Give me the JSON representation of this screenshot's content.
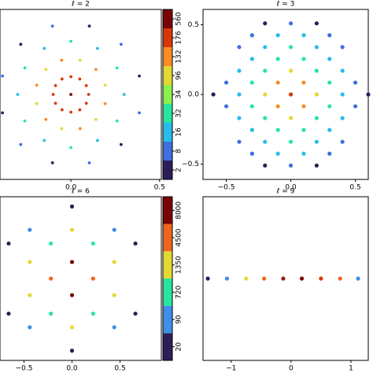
{
  "chart_data": [
    {
      "type": "scatter",
      "title": "ℓ = 2",
      "x": [
        0,
        0.1,
        0.087,
        0.05,
        0,
        -0.05,
        -0.087,
        -0.1,
        -0.087,
        -0.05,
        0,
        0.05,
        0.087,
        0.193,
        0.141,
        0.052,
        -0.052,
        -0.141,
        -0.193,
        -0.193,
        -0.141,
        -0.052,
        0.052,
        0.141,
        0.193,
        0.3,
        0.26,
        0.15,
        0,
        -0.15,
        -0.26,
        -0.3,
        -0.26,
        -0.15,
        0,
        0.15,
        0.26,
        0.386,
        0.283,
        0.104,
        -0.104,
        -0.283,
        -0.386,
        -0.386,
        -0.283,
        -0.104,
        0.104,
        0.283,
        0.386
      ],
      "y": [
        0,
        0,
        0.05,
        0.087,
        0.1,
        0.087,
        0.05,
        0,
        -0.05,
        -0.087,
        -0.1,
        -0.087,
        -0.05,
        0.052,
        0.141,
        0.193,
        0.193,
        0.141,
        0.052,
        -0.052,
        -0.141,
        -0.193,
        -0.193,
        -0.141,
        -0.052,
        0,
        0.15,
        0.26,
        0.3,
        0.26,
        0.15,
        0,
        -0.15,
        -0.26,
        -0.3,
        -0.26,
        -0.15,
        0.104,
        0.283,
        0.386,
        0.386,
        0.283,
        0.104,
        -0.104,
        -0.283,
        -0.386,
        -0.386,
        -0.283,
        -0.104
      ],
      "c": [
        560,
        176,
        176,
        176,
        176,
        176,
        176,
        176,
        176,
        176,
        176,
        176,
        176,
        96,
        132,
        96,
        132,
        96,
        132,
        96,
        132,
        96,
        132,
        96,
        132,
        16,
        32,
        16,
        32,
        16,
        32,
        16,
        32,
        16,
        32,
        16,
        32,
        2,
        8,
        2,
        8,
        2,
        8,
        2,
        8,
        2,
        8,
        2,
        8
      ],
      "xlim": [
        -0.4,
        0.51
      ],
      "ylim": [
        -0.48,
        0.48
      ],
      "xticks": [
        {
          "value": 0,
          "label": "0.0"
        },
        0.5
      ],
      "colorbar": {
        "ticks": [
          2,
          8,
          16,
          32,
          34,
          96,
          132,
          176,
          560
        ],
        "colors": [
          "#2d1e5a",
          "#3e6fe0",
          "#28bceb",
          "#26e6a0",
          "#8cf04c",
          "#e3d936",
          "#fb8b24",
          "#d93807",
          "#7a0403"
        ]
      }
    },
    {
      "type": "scatter",
      "title": "ℓ = 3",
      "x": [
        -0.2,
        0,
        0.2,
        -0.3,
        -0.1,
        0.1,
        0.3,
        -0.4,
        -0.2,
        0,
        0.2,
        0.4,
        -0.3,
        -0.1,
        0.1,
        0.3,
        -0.4,
        -0.2,
        0,
        0.2,
        0.4,
        -0.5,
        -0.3,
        -0.1,
        0.1,
        0.3,
        0.5,
        -0.6,
        -0.4,
        -0.2,
        0,
        0.2,
        0.4,
        0.6,
        -0.5,
        -0.3,
        -0.1,
        0.1,
        0.3,
        0.5,
        -0.4,
        -0.2,
        0,
        0.2,
        0.4,
        -0.3,
        -0.1,
        0.1,
        0.3,
        -0.4,
        -0.2,
        0,
        0.2,
        0.4,
        -0.3,
        -0.1,
        0.1,
        0.3,
        -0.2,
        0,
        0.2
      ],
      "y": [
        0.51,
        0.51,
        0.51,
        0.425,
        0.425,
        0.425,
        0.425,
        0.34,
        0.34,
        0.34,
        0.34,
        0.34,
        0.255,
        0.255,
        0.255,
        0.255,
        0.17,
        0.17,
        0.17,
        0.17,
        0.17,
        0.085,
        0.085,
        0.085,
        0.085,
        0.085,
        0.085,
        0,
        0,
        0,
        0,
        0,
        0,
        0,
        -0.085,
        -0.085,
        -0.085,
        -0.085,
        -0.085,
        -0.085,
        -0.17,
        -0.17,
        -0.17,
        -0.17,
        -0.17,
        -0.255,
        -0.255,
        -0.255,
        -0.255,
        -0.34,
        -0.34,
        -0.34,
        -0.34,
        -0.34,
        -0.425,
        -0.425,
        -0.425,
        -0.425,
        -0.51,
        -0.51,
        -0.51
      ],
      "point_colors": [
        "#2d1e5a",
        "#3e6fe0",
        "#2d1e5a",
        "#3e6fe0",
        "#28bceb",
        "#28bceb",
        "#3e6fe0",
        "#3e6fe0",
        "#28bceb",
        "#26e6a0",
        "#28bceb",
        "#3e6fe0",
        "#28bceb",
        "#26e6a0",
        "#26e6a0",
        "#28bceb",
        "#28bceb",
        "#26e6a0",
        "#e3d936",
        "#26e6a0",
        "#28bceb",
        "#3e6fe0",
        "#26e6a0",
        "#fb8b24",
        "#fb8b24",
        "#26e6a0",
        "#3e6fe0",
        "#2d1e5a",
        "#28bceb",
        "#e3d936",
        "#d93807",
        "#e3d936",
        "#28bceb",
        "#2d1e5a",
        "#3e6fe0",
        "#26e6a0",
        "#fb8b24",
        "#fb8b24",
        "#26e6a0",
        "#3e6fe0",
        "#28bceb",
        "#26e6a0",
        "#e3d936",
        "#26e6a0",
        "#28bceb",
        "#28bceb",
        "#26e6a0",
        "#26e6a0",
        "#28bceb",
        "#3e6fe0",
        "#28bceb",
        "#26e6a0",
        "#28bceb",
        "#3e6fe0",
        "#3e6fe0",
        "#28bceb",
        "#28bceb",
        "#3e6fe0",
        "#2d1e5a",
        "#3e6fe0",
        "#2d1e5a"
      ],
      "xlim": [
        -0.68,
        0.6
      ],
      "ylim": [
        -0.61,
        0.61
      ],
      "xticks": [
        {
          "value": -0.5,
          "label": "−0.5"
        },
        {
          "value": 0,
          "label": "0.0"
        },
        0.5
      ],
      "yticks": [
        0.5,
        {
          "value": 0,
          "label": "0.0"
        },
        {
          "value": -0.5,
          "label": "−0.5"
        }
      ]
    },
    {
      "type": "scatter",
      "title": "ℓ = 6",
      "x": [
        0,
        -0.44,
        0,
        0.44,
        -0.66,
        -0.22,
        0.22,
        0.66,
        -0.44,
        0,
        0.44,
        -0.22,
        0.22,
        -0.44,
        0,
        0.44,
        -0.66,
        -0.22,
        0.22,
        0.66,
        -0.44,
        0,
        0.44,
        0
      ],
      "y": [
        0.74,
        0.5,
        0.5,
        0.5,
        0.36,
        0.36,
        0.36,
        0.36,
        0.17,
        0.17,
        0.17,
        0,
        0,
        -0.17,
        -0.17,
        -0.17,
        -0.36,
        -0.36,
        -0.36,
        -0.36,
        -0.5,
        -0.5,
        -0.5,
        -0.74
      ],
      "c": [
        20,
        90,
        1350,
        90,
        20,
        720,
        720,
        20,
        1350,
        8000,
        1350,
        4500,
        4500,
        1350,
        8000,
        1350,
        20,
        720,
        720,
        20,
        90,
        1350,
        90,
        20
      ],
      "xlim": [
        -0.75,
        0.93
      ],
      "ylim": [
        -0.84,
        0.84
      ],
      "xticks": [
        {
          "value": -0.5,
          "label": "−0.5"
        },
        {
          "value": 0,
          "label": "0.0"
        },
        0.5
      ],
      "colorbar": {
        "ticks": [
          20,
          90,
          720,
          1350,
          4500,
          8000
        ],
        "colors": [
          "#2d1e5a",
          "#3e8fe6",
          "#26e6a0",
          "#e3d936",
          "#f0651e",
          "#7a0403"
        ]
      }
    },
    {
      "type": "scatter",
      "title": "ℓ = 9",
      "x": [
        -1.39,
        -1.07,
        -0.75,
        -0.45,
        -0.13,
        0.18,
        0.5,
        0.82,
        1.12
      ],
      "y": [
        0,
        0,
        0,
        0,
        0,
        0,
        0,
        0,
        0
      ],
      "point_colors": [
        "#2d1e5a",
        "#3e8fe6",
        "#e3d936",
        "#f0651e",
        "#9a1a05",
        "#7a0403",
        "#d93807",
        "#f0651e",
        "#3e8fe6"
      ],
      "xlim": [
        -1.47,
        1.29
      ],
      "ylim": [
        -1,
        1
      ],
      "xticks": [
        {
          "value": -1,
          "label": "−1"
        },
        0,
        1
      ]
    }
  ]
}
